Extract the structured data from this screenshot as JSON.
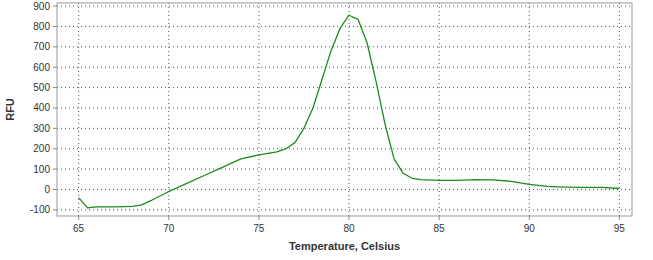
{
  "chart_data": {
    "type": "line",
    "x_label": "Temperature, Celsius",
    "y_label": "RFU",
    "x": [
      65,
      65.5,
      66,
      67,
      68,
      68.5,
      69,
      70,
      71,
      72,
      73,
      74,
      75,
      76,
      76.5,
      77,
      77.5,
      78,
      78.5,
      79,
      79.5,
      80,
      80.5,
      81,
      81.5,
      82,
      82.5,
      83,
      83.5,
      84,
      85,
      86,
      87,
      88,
      89,
      90,
      91,
      92,
      93,
      94,
      95
    ],
    "values": [
      -40,
      -90,
      -85,
      -85,
      -83,
      -75,
      -55,
      -10,
      30,
      70,
      110,
      150,
      170,
      185,
      200,
      230,
      300,
      400,
      540,
      680,
      790,
      855,
      835,
      720,
      530,
      320,
      150,
      80,
      55,
      48,
      45,
      45,
      48,
      47,
      40,
      25,
      15,
      12,
      10,
      10,
      5
    ],
    "color": "#1a8c1a",
    "xlim": [
      63.8,
      95.7
    ],
    "ylim": [
      -130,
      915
    ],
    "xticks": [
      65,
      70,
      75,
      80,
      85,
      90,
      95
    ],
    "yticks": [
      -100,
      0,
      100,
      200,
      300,
      400,
      500,
      600,
      700,
      800,
      900
    ],
    "grid": true
  }
}
